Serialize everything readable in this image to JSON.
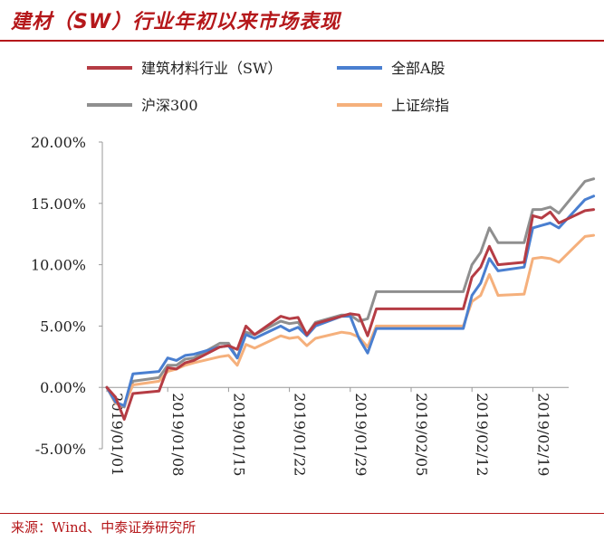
{
  "title": "建材（SW）行业年初以来市场表现",
  "source": "来源：Wind、中泰证券研究所",
  "colors": {
    "accent": "#b5181b",
    "series": [
      "#b53c44",
      "#4a7fd0",
      "#8f8f8f",
      "#f5b07c"
    ]
  },
  "chart_data": {
    "type": "line",
    "xlabels": [
      "2019/01/01",
      "2019/01/08",
      "2019/01/15",
      "2019/01/22",
      "2019/01/29",
      "2019/02/05",
      "2019/02/12",
      "2019/02/19"
    ],
    "ylim": [
      -5,
      20
    ],
    "yticks": [
      "-5.00%",
      "0.00%",
      "5.00%",
      "10.00%",
      "15.00%",
      "20.00%"
    ],
    "ytick_values": [
      -5,
      0,
      5,
      10,
      15,
      20
    ],
    "legend_position": "top",
    "grid": false,
    "series": [
      {
        "name": "建筑材料行业（SW）",
        "points": [
          [
            "2019-01-01",
            0
          ],
          [
            "2019-01-02",
            -0.8
          ],
          [
            "2019-01-03",
            -2.6
          ],
          [
            "2019-01-04",
            -0.5
          ],
          [
            "2019-01-07",
            -0.3
          ],
          [
            "2019-01-08",
            1.6
          ],
          [
            "2019-01-09",
            1.5
          ],
          [
            "2019-01-10",
            2.0
          ],
          [
            "2019-01-11",
            2.2
          ],
          [
            "2019-01-14",
            3.3
          ],
          [
            "2019-01-15",
            3.4
          ],
          [
            "2019-01-16",
            3.1
          ],
          [
            "2019-01-17",
            5.0
          ],
          [
            "2019-01-18",
            4.3
          ],
          [
            "2019-01-21",
            5.8
          ],
          [
            "2019-01-22",
            5.6
          ],
          [
            "2019-01-23",
            5.7
          ],
          [
            "2019-01-24",
            4.3
          ],
          [
            "2019-01-25",
            5.2
          ],
          [
            "2019-01-28",
            5.8
          ],
          [
            "2019-01-29",
            6.0
          ],
          [
            "2019-01-30",
            5.9
          ],
          [
            "2019-01-31",
            4.2
          ],
          [
            "2019-02-01",
            6.4
          ],
          [
            "2019-02-11",
            6.4
          ],
          [
            "2019-02-12",
            9.0
          ],
          [
            "2019-02-13",
            9.8
          ],
          [
            "2019-02-14",
            11.5
          ],
          [
            "2019-02-15",
            10.0
          ],
          [
            "2019-02-18",
            10.2
          ],
          [
            "2019-02-19",
            14.0
          ],
          [
            "2019-02-20",
            13.8
          ],
          [
            "2019-02-21",
            14.3
          ],
          [
            "2019-02-22",
            13.4
          ],
          [
            "2019-02-25",
            14.4
          ],
          [
            "2019-02-26",
            14.5
          ]
        ]
      },
      {
        "name": "全部A股",
        "points": [
          [
            "2019-01-01",
            0
          ],
          [
            "2019-01-02",
            -1.2
          ],
          [
            "2019-01-03",
            -1.5
          ],
          [
            "2019-01-04",
            1.1
          ],
          [
            "2019-01-07",
            1.3
          ],
          [
            "2019-01-08",
            2.4
          ],
          [
            "2019-01-09",
            2.2
          ],
          [
            "2019-01-10",
            2.6
          ],
          [
            "2019-01-11",
            2.7
          ],
          [
            "2019-01-14",
            3.3
          ],
          [
            "2019-01-15",
            3.4
          ],
          [
            "2019-01-16",
            2.4
          ],
          [
            "2019-01-17",
            4.3
          ],
          [
            "2019-01-18",
            4.0
          ],
          [
            "2019-01-21",
            5.0
          ],
          [
            "2019-01-22",
            4.6
          ],
          [
            "2019-01-23",
            4.9
          ],
          [
            "2019-01-24",
            4.2
          ],
          [
            "2019-01-25",
            5.0
          ],
          [
            "2019-01-28",
            5.8
          ],
          [
            "2019-01-29",
            5.8
          ],
          [
            "2019-01-30",
            4.0
          ],
          [
            "2019-01-31",
            2.8
          ],
          [
            "2019-02-01",
            4.8
          ],
          [
            "2019-02-11",
            4.8
          ],
          [
            "2019-02-12",
            7.5
          ],
          [
            "2019-02-13",
            8.5
          ],
          [
            "2019-02-14",
            10.5
          ],
          [
            "2019-02-15",
            9.5
          ],
          [
            "2019-02-18",
            9.8
          ],
          [
            "2019-02-19",
            13.0
          ],
          [
            "2019-02-20",
            13.2
          ],
          [
            "2019-02-21",
            13.4
          ],
          [
            "2019-02-22",
            13.0
          ],
          [
            "2019-02-25",
            15.3
          ],
          [
            "2019-02-26",
            15.6
          ]
        ]
      },
      {
        "name": "沪深300",
        "points": [
          [
            "2019-01-01",
            0
          ],
          [
            "2019-01-02",
            -1.3
          ],
          [
            "2019-01-03",
            -1.6
          ],
          [
            "2019-01-04",
            0.5
          ],
          [
            "2019-01-07",
            0.8
          ],
          [
            "2019-01-08",
            1.8
          ],
          [
            "2019-01-09",
            1.8
          ],
          [
            "2019-01-10",
            2.3
          ],
          [
            "2019-01-11",
            2.4
          ],
          [
            "2019-01-14",
            3.6
          ],
          [
            "2019-01-15",
            3.6
          ],
          [
            "2019-01-16",
            2.4
          ],
          [
            "2019-01-17",
            4.5
          ],
          [
            "2019-01-18",
            4.3
          ],
          [
            "2019-01-21",
            5.4
          ],
          [
            "2019-01-22",
            5.2
          ],
          [
            "2019-01-23",
            5.3
          ],
          [
            "2019-01-24",
            4.3
          ],
          [
            "2019-01-25",
            5.3
          ],
          [
            "2019-01-28",
            5.9
          ],
          [
            "2019-01-29",
            5.9
          ],
          [
            "2019-01-30",
            5.4
          ],
          [
            "2019-01-31",
            5.6
          ],
          [
            "2019-02-01",
            7.8
          ],
          [
            "2019-02-11",
            7.8
          ],
          [
            "2019-02-12",
            10.0
          ],
          [
            "2019-02-13",
            11.0
          ],
          [
            "2019-02-14",
            13.0
          ],
          [
            "2019-02-15",
            11.8
          ],
          [
            "2019-02-18",
            11.8
          ],
          [
            "2019-02-19",
            14.5
          ],
          [
            "2019-02-20",
            14.5
          ],
          [
            "2019-02-21",
            14.7
          ],
          [
            "2019-02-22",
            14.2
          ],
          [
            "2019-02-25",
            16.8
          ],
          [
            "2019-02-26",
            17.0
          ]
        ]
      },
      {
        "name": "上证综指",
        "points": [
          [
            "2019-01-01",
            0
          ],
          [
            "2019-01-02",
            -1.3
          ],
          [
            "2019-01-03",
            -1.5
          ],
          [
            "2019-01-04",
            0.2
          ],
          [
            "2019-01-07",
            0.5
          ],
          [
            "2019-01-08",
            1.3
          ],
          [
            "2019-01-09",
            1.5
          ],
          [
            "2019-01-10",
            1.8
          ],
          [
            "2019-01-11",
            2.0
          ],
          [
            "2019-01-14",
            2.5
          ],
          [
            "2019-01-15",
            2.6
          ],
          [
            "2019-01-16",
            1.8
          ],
          [
            "2019-01-17",
            3.5
          ],
          [
            "2019-01-18",
            3.2
          ],
          [
            "2019-01-21",
            4.2
          ],
          [
            "2019-01-22",
            4.0
          ],
          [
            "2019-01-23",
            4.1
          ],
          [
            "2019-01-24",
            3.4
          ],
          [
            "2019-01-25",
            4.0
          ],
          [
            "2019-01-28",
            4.5
          ],
          [
            "2019-01-29",
            4.4
          ],
          [
            "2019-01-30",
            4.1
          ],
          [
            "2019-01-31",
            3.3
          ],
          [
            "2019-02-01",
            5.0
          ],
          [
            "2019-02-11",
            5.0
          ],
          [
            "2019-02-12",
            7.0
          ],
          [
            "2019-02-13",
            7.5
          ],
          [
            "2019-02-14",
            9.2
          ],
          [
            "2019-02-15",
            7.5
          ],
          [
            "2019-02-18",
            7.6
          ],
          [
            "2019-02-19",
            10.5
          ],
          [
            "2019-02-20",
            10.6
          ],
          [
            "2019-02-21",
            10.5
          ],
          [
            "2019-02-22",
            10.2
          ],
          [
            "2019-02-25",
            12.3
          ],
          [
            "2019-02-26",
            12.4
          ]
        ]
      }
    ]
  }
}
